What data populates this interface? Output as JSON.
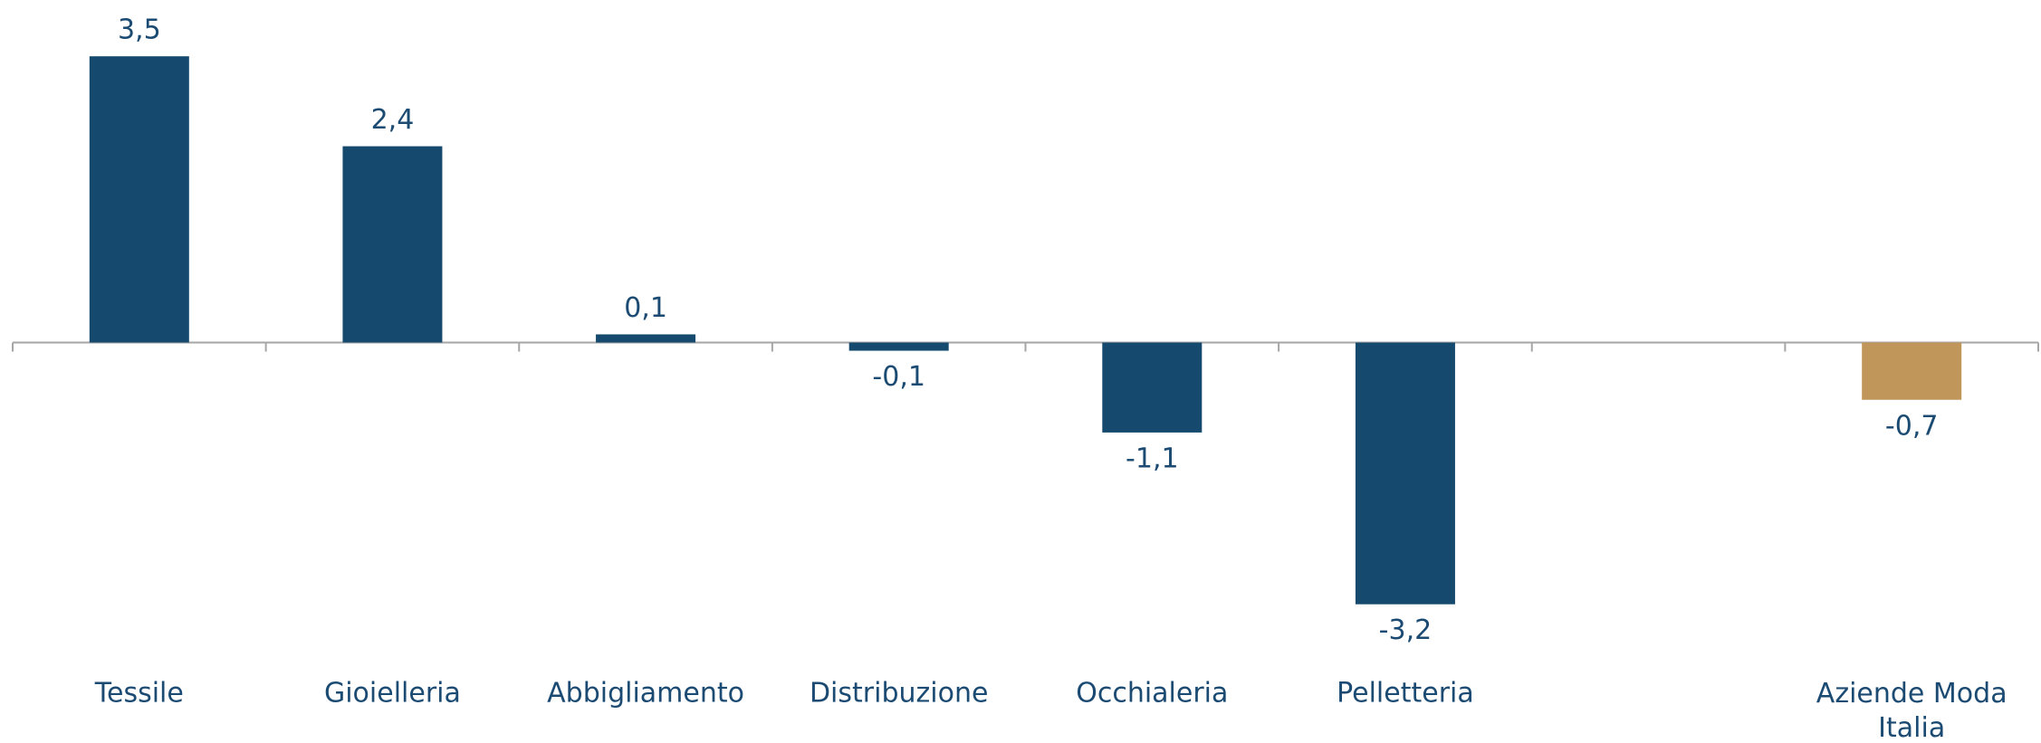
{
  "chart_data": {
    "type": "bar",
    "categories": [
      "Tessile",
      "Gioielleria",
      "Abbigliamento",
      "Distribuzione",
      "Occhialeria",
      "Pelletteria",
      null,
      "Aziende Moda Italia"
    ],
    "values": [
      3.5,
      2.4,
      0.1,
      -0.1,
      -1.1,
      -3.2,
      null,
      -0.7
    ],
    "value_labels": [
      "3,5",
      "2,4",
      "0,1",
      "-0,1",
      "-1,1",
      "-3,2",
      null,
      "-0,7"
    ],
    "colors": [
      "#154a6e",
      "#154a6e",
      "#154a6e",
      "#154a6e",
      "#154a6e",
      "#154a6e",
      null,
      "#c0965a"
    ],
    "ylim": [
      -4,
      4
    ]
  }
}
